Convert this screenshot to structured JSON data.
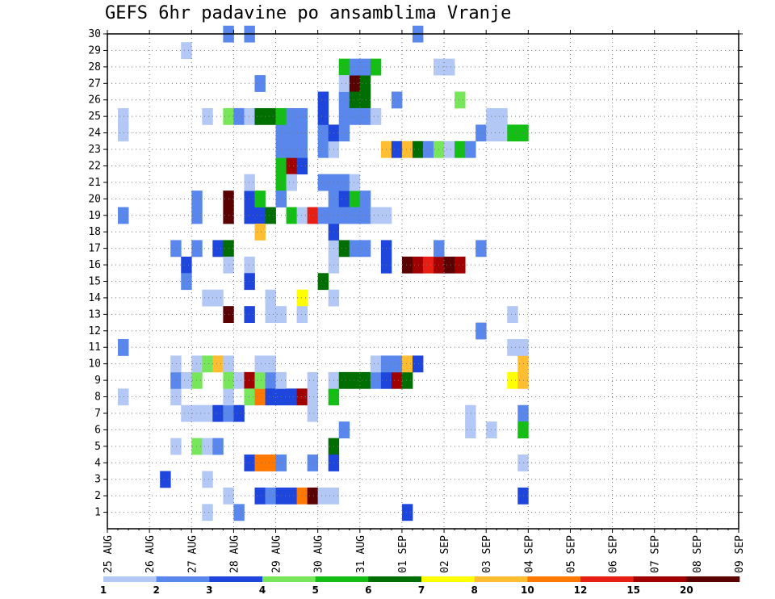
{
  "chart_data": {
    "type": "heatmap",
    "title": "GEFS 6hr padavine po ansamblima Vranje",
    "xlabel": "",
    "ylabel": "",
    "x_tick_labels": [
      "25 AUG",
      "26 AUG",
      "27 AUG",
      "28 AUG",
      "29 AUG",
      "30 AUG",
      "31 AUG",
      "01 SEP",
      "02 SEP",
      "03 SEP",
      "04 SEP",
      "05 SEP",
      "06 SEP",
      "07 SEP",
      "08 SEP",
      "09 SEP"
    ],
    "y_tick_labels": [
      "1",
      "2",
      "3",
      "4",
      "5",
      "6",
      "7",
      "8",
      "9",
      "10",
      "11",
      "12",
      "13",
      "14",
      "15",
      "16",
      "17",
      "18",
      "19",
      "20",
      "21",
      "22",
      "23",
      "24",
      "25",
      "26",
      "27",
      "28",
      "29",
      "30"
    ],
    "x_range_steps": [
      0,
      60
    ],
    "x_step_hours": 6,
    "y_range": [
      0,
      30
    ],
    "grid": true,
    "legend": {
      "placement": "bottom",
      "levels": [
        "1",
        "2",
        "3",
        "4",
        "5",
        "6",
        "7",
        "8",
        "10",
        "12",
        "15",
        "20"
      ],
      "colors": [
        "#b4c8f5",
        "#5a87eb",
        "#1e46dc",
        "#78e65a",
        "#14be14",
        "#006e00",
        "#ffff00",
        "#ffbe32",
        "#ff7800",
        "#e61e14",
        "#a00000",
        "#5a0000"
      ]
    },
    "cells": [
      [
        1,
        11,
        1
      ],
      [
        1,
        24,
        0
      ],
      [
        1,
        25,
        0
      ],
      [
        1,
        19,
        1
      ],
      [
        1,
        8,
        0
      ],
      [
        5,
        3,
        2
      ],
      [
        6,
        8,
        0
      ],
      [
        6,
        9,
        1
      ],
      [
        6,
        10,
        0
      ],
      [
        6,
        5,
        0
      ],
      [
        6,
        17,
        1
      ],
      [
        7,
        7,
        0
      ],
      [
        7,
        9,
        0
      ],
      [
        7,
        16,
        2
      ],
      [
        7,
        15,
        1
      ],
      [
        7,
        29,
        0
      ],
      [
        8,
        9,
        0
      ],
      [
        8,
        20,
        0
      ],
      [
        8,
        7,
        0
      ],
      [
        8,
        19,
        1
      ],
      [
        8,
        20,
        1
      ],
      [
        8,
        9,
        3
      ],
      [
        8,
        5,
        3
      ],
      [
        8,
        10,
        0
      ],
      [
        8,
        17,
        1
      ],
      [
        9,
        5,
        0
      ],
      [
        9,
        14,
        0
      ],
      [
        9,
        1,
        0
      ],
      [
        9,
        3,
        0
      ],
      [
        9,
        7,
        0
      ],
      [
        9,
        10,
        3
      ],
      [
        9,
        25,
        0
      ],
      [
        10,
        17,
        5
      ],
      [
        10,
        14,
        5
      ],
      [
        10,
        10,
        7
      ],
      [
        10,
        17,
        2
      ],
      [
        10,
        7,
        2
      ],
      [
        10,
        5,
        1
      ],
      [
        10,
        14,
        0
      ],
      [
        11,
        10,
        0
      ],
      [
        11,
        7,
        0
      ],
      [
        11,
        13,
        0
      ],
      [
        11,
        7,
        1
      ],
      [
        11,
        2,
        0
      ],
      [
        11,
        30,
        1
      ],
      [
        11,
        25,
        3
      ],
      [
        11,
        19,
        11
      ],
      [
        11,
        20,
        11
      ],
      [
        11,
        17,
        5
      ],
      [
        11,
        16,
        0
      ],
      [
        11,
        8,
        0
      ],
      [
        11,
        9,
        3
      ],
      [
        11,
        13,
        11
      ],
      [
        12,
        25,
        1
      ],
      [
        12,
        7,
        2
      ],
      [
        12,
        1,
        1
      ],
      [
        12,
        9,
        0
      ],
      [
        13,
        9,
        0
      ],
      [
        13,
        16,
        5
      ],
      [
        13,
        20,
        0
      ],
      [
        13,
        30,
        0
      ],
      [
        13,
        8,
        0
      ],
      [
        13,
        13,
        1
      ],
      [
        13,
        13,
        6
      ],
      [
        13,
        13,
        2
      ],
      [
        13,
        9,
        10
      ],
      [
        13,
        19,
        2
      ],
      [
        13,
        20,
        2
      ],
      [
        13,
        25,
        8
      ],
      [
        13,
        25,
        0
      ],
      [
        13,
        30,
        1
      ],
      [
        13,
        15,
        2
      ],
      [
        13,
        16,
        0
      ],
      [
        13,
        21,
        0
      ],
      [
        13,
        4,
        6
      ],
      [
        13,
        4,
        2
      ],
      [
        13,
        8,
        3
      ],
      [
        14,
        27,
        4
      ],
      [
        14,
        27,
        1
      ],
      [
        14,
        25,
        1
      ],
      [
        14,
        25,
        4
      ],
      [
        14,
        25,
        5
      ],
      [
        14,
        19,
        2
      ],
      [
        14,
        18,
        7
      ],
      [
        14,
        20,
        4
      ],
      [
        14,
        8,
        4
      ],
      [
        14,
        9,
        3
      ],
      [
        14,
        10,
        1
      ],
      [
        14,
        10,
        0
      ],
      [
        14,
        2,
        3
      ],
      [
        14,
        2,
        2
      ],
      [
        14,
        4,
        8
      ],
      [
        14,
        8,
        8
      ],
      [
        15,
        25,
        4
      ],
      [
        15,
        25,
        5
      ],
      [
        15,
        19,
        5
      ],
      [
        15,
        9,
        1
      ],
      [
        15,
        13,
        1
      ],
      [
        15,
        13,
        4
      ],
      [
        15,
        8,
        2
      ],
      [
        15,
        2,
        1
      ],
      [
        15,
        4,
        8
      ],
      [
        15,
        14,
        0
      ],
      [
        15,
        10,
        0
      ],
      [
        15,
        13,
        0
      ],
      [
        16,
        21,
        1
      ],
      [
        16,
        22,
        3
      ],
      [
        16,
        23,
        1
      ],
      [
        16,
        24,
        1
      ],
      [
        16,
        25,
        1
      ],
      [
        16,
        25,
        4
      ],
      [
        16,
        22,
        4
      ],
      [
        16,
        21,
        4
      ],
      [
        16,
        20,
        1
      ],
      [
        16,
        8,
        2
      ],
      [
        16,
        2,
        0
      ],
      [
        16,
        2,
        1
      ],
      [
        16,
        9,
        0
      ],
      [
        16,
        13,
        0
      ],
      [
        16,
        4,
        1
      ],
      [
        16,
        2,
        2
      ],
      [
        17,
        22,
        10
      ],
      [
        17,
        23,
        1
      ],
      [
        17,
        24,
        1
      ],
      [
        17,
        25,
        1
      ],
      [
        17,
        19,
        4
      ],
      [
        17,
        8,
        2
      ],
      [
        17,
        2,
        2
      ],
      [
        17,
        21,
        0
      ],
      [
        18,
        22,
        2
      ],
      [
        18,
        19,
        4
      ],
      [
        18,
        8,
        2
      ],
      [
        18,
        2,
        9
      ],
      [
        18,
        8,
        10
      ],
      [
        18,
        2,
        8
      ],
      [
        18,
        14,
        6
      ],
      [
        18,
        13,
        0
      ],
      [
        18,
        25,
        1
      ],
      [
        18,
        24,
        1
      ],
      [
        18,
        23,
        1
      ],
      [
        18,
        19,
        0
      ],
      [
        19,
        19,
        9
      ],
      [
        19,
        7,
        0
      ],
      [
        19,
        2,
        7
      ],
      [
        19,
        2,
        11
      ],
      [
        19,
        19,
        9
      ],
      [
        19,
        9,
        0
      ],
      [
        19,
        8,
        0
      ],
      [
        19,
        4,
        1
      ],
      [
        20,
        2,
        0
      ],
      [
        20,
        19,
        1
      ],
      [
        20,
        15,
        5
      ],
      [
        20,
        24,
        0
      ],
      [
        20,
        25,
        0
      ],
      [
        20,
        23,
        1
      ],
      [
        20,
        24,
        1
      ],
      [
        20,
        25,
        1
      ],
      [
        20,
        26,
        2
      ],
      [
        20,
        25,
        2
      ],
      [
        20,
        21,
        1
      ],
      [
        21,
        2,
        0
      ],
      [
        21,
        8,
        4
      ],
      [
        21,
        5,
        5
      ],
      [
        21,
        17,
        0
      ],
      [
        21,
        16,
        0
      ],
      [
        21,
        14,
        0
      ],
      [
        21,
        20,
        1
      ],
      [
        21,
        21,
        1
      ],
      [
        21,
        9,
        0
      ],
      [
        21,
        4,
        2
      ],
      [
        21,
        23,
        0
      ],
      [
        21,
        18,
        2
      ],
      [
        21,
        19,
        1
      ],
      [
        21,
        24,
        2
      ],
      [
        21,
        0,
        2
      ],
      [
        21,
        0,
        4
      ],
      [
        22,
        20,
        1
      ],
      [
        22,
        21,
        1
      ],
      [
        22,
        17,
        1
      ],
      [
        22,
        17,
        5
      ],
      [
        22,
        20,
        2
      ],
      [
        22,
        26,
        2
      ],
      [
        22,
        24,
        1
      ],
      [
        22,
        21,
        1
      ],
      [
        22,
        28,
        4
      ],
      [
        22,
        27,
        0
      ],
      [
        22,
        20,
        2
      ],
      [
        22,
        6,
        1
      ],
      [
        22,
        26,
        1
      ],
      [
        22,
        9,
        5
      ],
      [
        22,
        19,
        1
      ],
      [
        22,
        25,
        1
      ],
      [
        23,
        27,
        11
      ],
      [
        23,
        28,
        1
      ],
      [
        23,
        26,
        5
      ],
      [
        23,
        25,
        1
      ],
      [
        23,
        20,
        3
      ],
      [
        23,
        17,
        1
      ],
      [
        23,
        19,
        1
      ],
      [
        23,
        20,
        4
      ],
      [
        23,
        21,
        0
      ],
      [
        23,
        9,
        5
      ],
      [
        23,
        25,
        1
      ],
      [
        24,
        27,
        5
      ],
      [
        24,
        28,
        1
      ],
      [
        24,
        26,
        0
      ],
      [
        24,
        26,
        5
      ],
      [
        24,
        9,
        5
      ],
      [
        24,
        20,
        1
      ],
      [
        24,
        19,
        1
      ],
      [
        24,
        25,
        1
      ],
      [
        24,
        17,
        1
      ],
      [
        25,
        28,
        4
      ],
      [
        25,
        9,
        1
      ],
      [
        25,
        10,
        0
      ],
      [
        25,
        19,
        0
      ],
      [
        25,
        25,
        0
      ],
      [
        26,
        9,
        2
      ],
      [
        26,
        10,
        2
      ],
      [
        26,
        19,
        0
      ],
      [
        26,
        23,
        7
      ],
      [
        26,
        10,
        1
      ],
      [
        26,
        16,
        2
      ],
      [
        26,
        17,
        2
      ],
      [
        27,
        9,
        10
      ],
      [
        27,
        10,
        1
      ],
      [
        27,
        23,
        2
      ],
      [
        27,
        26,
        1
      ],
      [
        28,
        9,
        5
      ],
      [
        28,
        10,
        7
      ],
      [
        28,
        23,
        7
      ],
      [
        28,
        16,
        11
      ],
      [
        28,
        1,
        2
      ],
      [
        29,
        23,
        5
      ],
      [
        29,
        16,
        10
      ],
      [
        29,
        30,
        1
      ],
      [
        29,
        10,
        2
      ],
      [
        30,
        23,
        7
      ],
      [
        30,
        16,
        9
      ],
      [
        30,
        23,
        4
      ],
      [
        30,
        23,
        1
      ],
      [
        31,
        23,
        1
      ],
      [
        31,
        23,
        3
      ],
      [
        31,
        28,
        0
      ],
      [
        31,
        16,
        10
      ],
      [
        31,
        17,
        1
      ],
      [
        32,
        23,
        0
      ],
      [
        32,
        28,
        0
      ],
      [
        32,
        16,
        11
      ],
      [
        33,
        23,
        8
      ],
      [
        33,
        23,
        4
      ],
      [
        33,
        26,
        3
      ],
      [
        33,
        16,
        10
      ],
      [
        34,
        23,
        5
      ],
      [
        34,
        23,
        0
      ],
      [
        34,
        7,
        0
      ],
      [
        34,
        6,
        0
      ],
      [
        34,
        23,
        1
      ],
      [
        35,
        24,
        0
      ],
      [
        35,
        17,
        1
      ],
      [
        35,
        24,
        1
      ],
      [
        35,
        12,
        1
      ],
      [
        36,
        24,
        1
      ],
      [
        36,
        25,
        0
      ],
      [
        36,
        24,
        0
      ],
      [
        36,
        6,
        0
      ],
      [
        37,
        25,
        0
      ],
      [
        37,
        24,
        1
      ],
      [
        37,
        24,
        0
      ],
      [
        38,
        24,
        2
      ],
      [
        38,
        9,
        6
      ],
      [
        38,
        24,
        4
      ],
      [
        38,
        13,
        0
      ],
      [
        38,
        11,
        0
      ],
      [
        39,
        24,
        4
      ],
      [
        39,
        10,
        7
      ],
      [
        39,
        11,
        0
      ],
      [
        39,
        9,
        0
      ],
      [
        39,
        11,
        0
      ],
      [
        39,
        7,
        1
      ],
      [
        39,
        4,
        0
      ],
      [
        39,
        2,
        2
      ],
      [
        39,
        6,
        4
      ],
      [
        39,
        9,
        7
      ]
    ]
  }
}
